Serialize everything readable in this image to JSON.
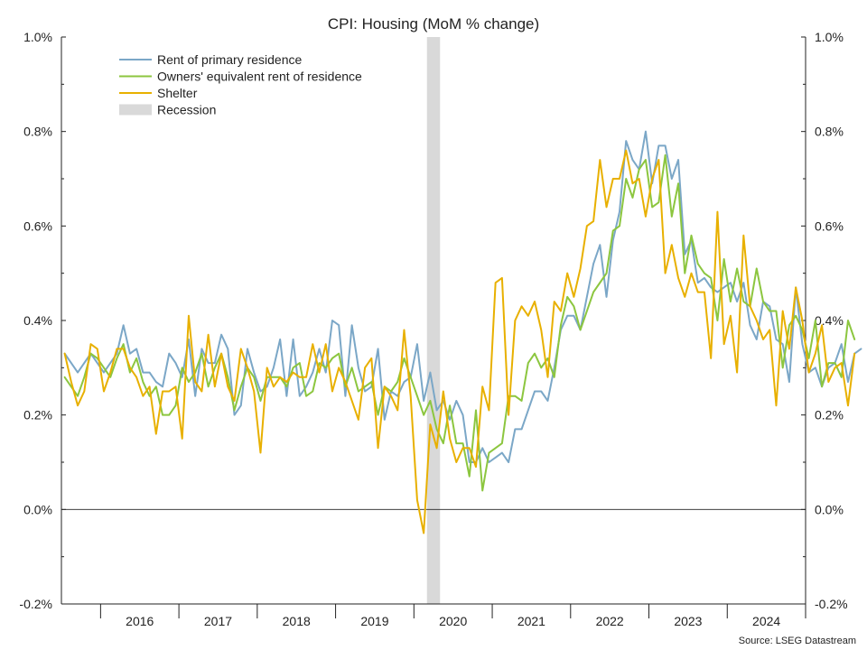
{
  "chart_data": {
    "type": "line",
    "title": "CPI: Housing (MoM % change)",
    "source": "Source: LSEG Datastream",
    "ylim": [
      -0.2,
      1.0
    ],
    "y_ticks": [
      -0.2,
      0.0,
      0.2,
      0.4,
      0.6,
      0.8,
      1.0
    ],
    "y_tick_labels": [
      "-0.2%",
      "0.0%",
      "0.2%",
      "0.4%",
      "0.6%",
      "0.8%",
      "1.0%"
    ],
    "x_start": "2015-07",
    "x_end": "2024-12",
    "x_tick_labels": [
      "2016",
      "2017",
      "2018",
      "2019",
      "2020",
      "2021",
      "2022",
      "2023",
      "2024"
    ],
    "zero_line": true,
    "grid": false,
    "legend_position": "top-left",
    "recession": {
      "label": "Recession",
      "start": "2020-03",
      "end": "2020-04",
      "color": "#d9d9d9"
    },
    "series": [
      {
        "name": "Rent of primary residence",
        "color": "#7ba7c7",
        "start": "2015-07",
        "values": [
          0.33,
          0.31,
          0.29,
          0.31,
          0.33,
          0.31,
          0.29,
          0.31,
          0.33,
          0.39,
          0.33,
          0.34,
          0.29,
          0.29,
          0.27,
          0.26,
          0.33,
          0.31,
          0.28,
          0.36,
          0.24,
          0.34,
          0.31,
          0.31,
          0.37,
          0.34,
          0.2,
          0.22,
          0.34,
          0.29,
          0.25,
          0.26,
          0.3,
          0.36,
          0.24,
          0.36,
          0.24,
          0.26,
          0.29,
          0.34,
          0.29,
          0.4,
          0.39,
          0.24,
          0.39,
          0.3,
          0.25,
          0.26,
          0.34,
          0.19,
          0.25,
          0.24,
          0.27,
          0.28,
          0.35,
          0.23,
          0.29,
          0.21,
          0.23,
          0.19,
          0.23,
          0.2,
          0.1,
          0.1,
          0.13,
          0.1,
          0.11,
          0.12,
          0.1,
          0.17,
          0.17,
          0.21,
          0.25,
          0.25,
          0.23,
          0.3,
          0.38,
          0.41,
          0.41,
          0.38,
          0.45,
          0.52,
          0.56,
          0.45,
          0.57,
          0.63,
          0.78,
          0.74,
          0.72,
          0.8,
          0.69,
          0.77,
          0.77,
          0.7,
          0.74,
          0.54,
          0.57,
          0.48,
          0.49,
          0.47,
          0.46,
          0.47,
          0.48,
          0.44,
          0.48,
          0.39,
          0.36,
          0.44,
          0.43,
          0.36,
          0.35,
          0.27,
          0.47,
          0.35,
          0.29,
          0.3,
          0.26,
          0.3,
          0.31,
          0.35,
          0.27,
          0.33,
          0.34
        ]
      },
      {
        "name": "Owners' equivalent rent of residence",
        "color": "#8cc63f",
        "start": "2015-07",
        "values": [
          0.28,
          0.26,
          0.24,
          0.28,
          0.33,
          0.32,
          0.3,
          0.28,
          0.32,
          0.35,
          0.29,
          0.32,
          0.27,
          0.24,
          0.26,
          0.2,
          0.2,
          0.22,
          0.3,
          0.27,
          0.29,
          0.33,
          0.26,
          0.3,
          0.33,
          0.28,
          0.21,
          0.26,
          0.3,
          0.28,
          0.23,
          0.28,
          0.28,
          0.28,
          0.26,
          0.3,
          0.31,
          0.24,
          0.25,
          0.31,
          0.3,
          0.32,
          0.33,
          0.26,
          0.3,
          0.25,
          0.26,
          0.27,
          0.2,
          0.26,
          0.25,
          0.27,
          0.32,
          0.28,
          0.24,
          0.2,
          0.23,
          0.17,
          0.14,
          0.22,
          0.14,
          0.14,
          0.07,
          0.21,
          0.04,
          0.12,
          0.13,
          0.14,
          0.24,
          0.24,
          0.23,
          0.31,
          0.33,
          0.3,
          0.32,
          0.28,
          0.39,
          0.45,
          0.43,
          0.38,
          0.42,
          0.46,
          0.48,
          0.5,
          0.59,
          0.6,
          0.7,
          0.66,
          0.72,
          0.74,
          0.64,
          0.65,
          0.75,
          0.62,
          0.69,
          0.5,
          0.58,
          0.52,
          0.5,
          0.49,
          0.4,
          0.53,
          0.44,
          0.51,
          0.44,
          0.43,
          0.51,
          0.44,
          0.42,
          0.42,
          0.3,
          0.39,
          0.41,
          0.38,
          0.32,
          0.4,
          0.26,
          0.31,
          0.31,
          0.28,
          0.4,
          0.36
        ]
      },
      {
        "name": "Shelter",
        "color": "#e8b000",
        "start": "2015-07",
        "values": [
          0.33,
          0.27,
          0.22,
          0.25,
          0.35,
          0.34,
          0.25,
          0.29,
          0.34,
          0.34,
          0.3,
          0.28,
          0.24,
          0.26,
          0.16,
          0.25,
          0.25,
          0.26,
          0.15,
          0.41,
          0.27,
          0.25,
          0.37,
          0.26,
          0.33,
          0.26,
          0.23,
          0.34,
          0.3,
          0.25,
          0.12,
          0.3,
          0.26,
          0.28,
          0.27,
          0.29,
          0.28,
          0.28,
          0.35,
          0.29,
          0.35,
          0.25,
          0.3,
          0.27,
          0.23,
          0.19,
          0.3,
          0.32,
          0.13,
          0.26,
          0.24,
          0.21,
          0.38,
          0.24,
          0.02,
          -0.05,
          0.18,
          0.13,
          0.25,
          0.15,
          0.1,
          0.13,
          0.13,
          0.09,
          0.26,
          0.21,
          0.48,
          0.49,
          0.2,
          0.4,
          0.43,
          0.41,
          0.44,
          0.38,
          0.28,
          0.44,
          0.42,
          0.5,
          0.45,
          0.51,
          0.6,
          0.61,
          0.74,
          0.64,
          0.7,
          0.7,
          0.76,
          0.69,
          0.7,
          0.62,
          0.7,
          0.74,
          0.5,
          0.56,
          0.49,
          0.45,
          0.5,
          0.46,
          0.46,
          0.32,
          0.63,
          0.35,
          0.41,
          0.29,
          0.58,
          0.43,
          0.4,
          0.36,
          0.38,
          0.22,
          0.42,
          0.34,
          0.47,
          0.4,
          0.29,
          0.33,
          0.39,
          0.27,
          0.3,
          0.31,
          0.22,
          0.33
        ]
      }
    ]
  }
}
